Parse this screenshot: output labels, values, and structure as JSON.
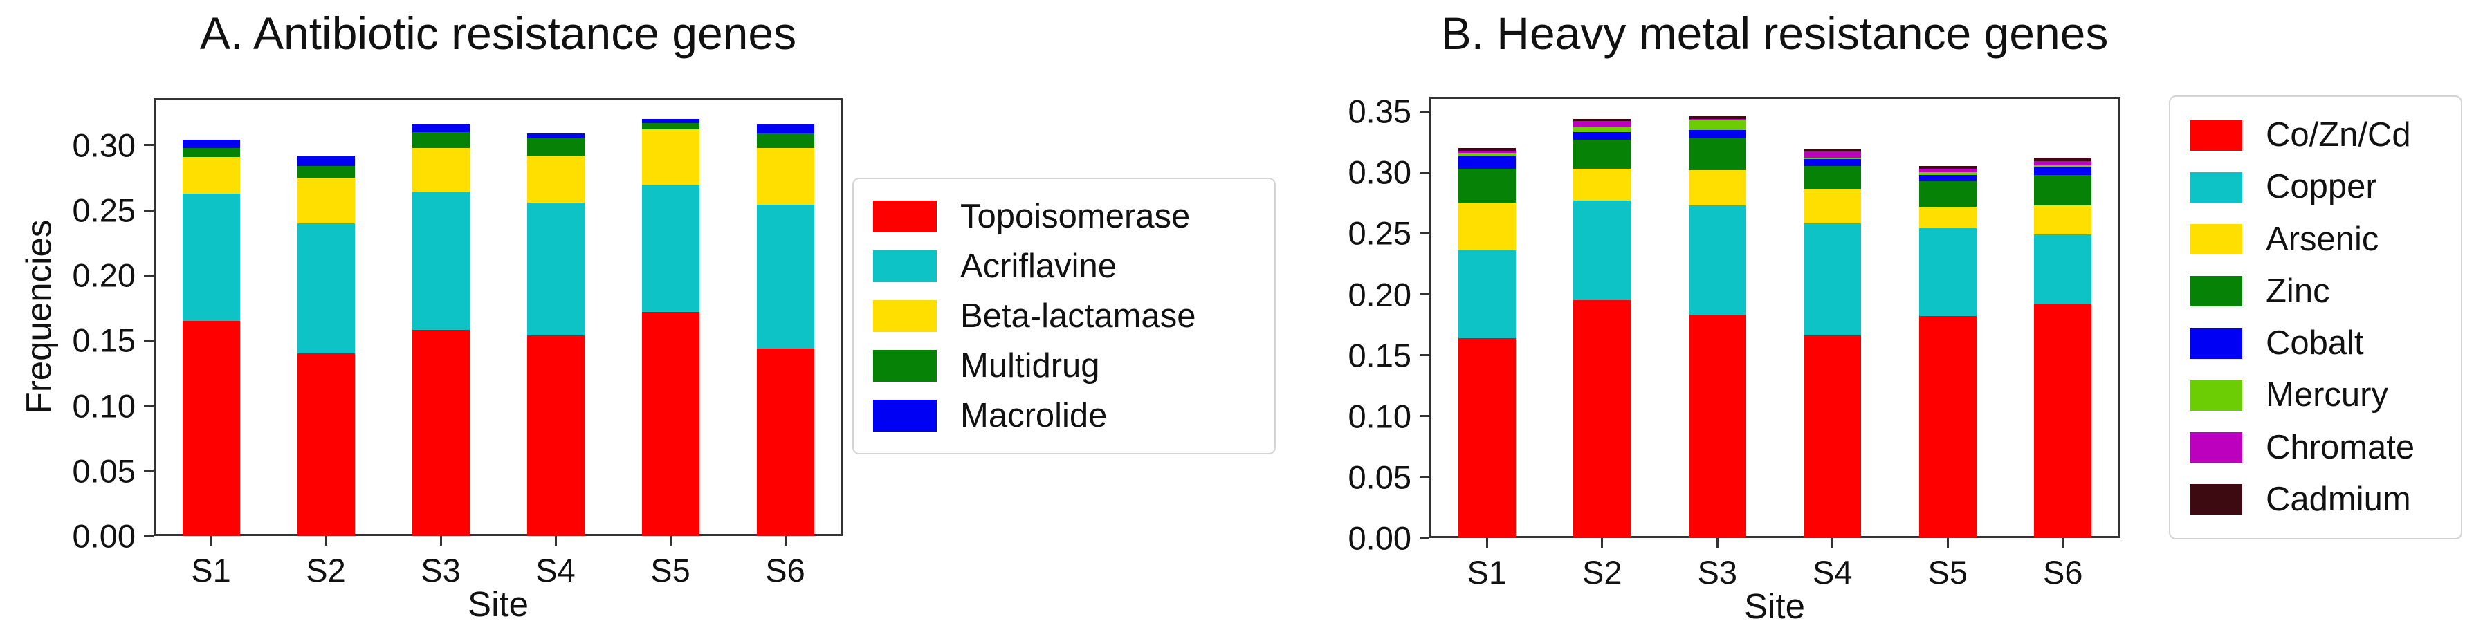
{
  "figure": {
    "background": "#ffffff",
    "text_color": "#111111",
    "axis_color": "#333333"
  },
  "chart_data": [
    {
      "type": "bar",
      "stacked": true,
      "title": "A. Antibiotic resistance genes",
      "xlabel": "Site",
      "ylabel": "Frequencies",
      "categories": [
        "S1",
        "S2",
        "S3",
        "S4",
        "S5",
        "S6"
      ],
      "ytick_labels": [
        "0.00",
        "0.05",
        "0.10",
        "0.15",
        "0.20",
        "0.25",
        "0.30"
      ],
      "ylim": [
        0,
        0.336
      ],
      "grid": false,
      "legend_position": "right-outside",
      "series": [
        {
          "name": "Topoisomerase",
          "color": "#fe0000",
          "values": [
            0.165,
            0.14,
            0.158,
            0.154,
            0.172,
            0.144
          ]
        },
        {
          "name": "Acriflavine",
          "color": "#0ec3c6",
          "values": [
            0.098,
            0.1,
            0.106,
            0.102,
            0.097,
            0.11
          ]
        },
        {
          "name": "Beta-lactamase",
          "color": "#ffdf00",
          "values": [
            0.028,
            0.035,
            0.034,
            0.036,
            0.043,
            0.044
          ]
        },
        {
          "name": "Multidrug",
          "color": "#068206",
          "values": [
            0.007,
            0.009,
            0.012,
            0.013,
            0.005,
            0.011
          ]
        },
        {
          "name": "Macrolide",
          "color": "#0000f5",
          "values": [
            0.006,
            0.008,
            0.006,
            0.004,
            0.003,
            0.007
          ]
        }
      ]
    },
    {
      "type": "bar",
      "stacked": true,
      "title": "B. Heavy metal resistance genes",
      "xlabel": "Site",
      "ylabel": "",
      "categories": [
        "S1",
        "S2",
        "S3",
        "S4",
        "S5",
        "S6"
      ],
      "ytick_labels": [
        "0.00",
        "0.05",
        "0.10",
        "0.15",
        "0.20",
        "0.25",
        "0.30",
        "0.35"
      ],
      "ylim": [
        0,
        0.362
      ],
      "grid": false,
      "legend_position": "right-outside",
      "series": [
        {
          "name": "Co/Zn/Cd",
          "color": "#fe0000",
          "values": [
            0.164,
            0.195,
            0.183,
            0.166,
            0.182,
            0.192
          ]
        },
        {
          "name": "Copper",
          "color": "#0ec3c6",
          "values": [
            0.072,
            0.082,
            0.09,
            0.092,
            0.072,
            0.057
          ]
        },
        {
          "name": "Arsenic",
          "color": "#ffdf00",
          "values": [
            0.039,
            0.026,
            0.029,
            0.028,
            0.018,
            0.024
          ]
        },
        {
          "name": "Zinc",
          "color": "#068206",
          "values": [
            0.028,
            0.024,
            0.026,
            0.019,
            0.021,
            0.025
          ]
        },
        {
          "name": "Cobalt",
          "color": "#0000f5",
          "values": [
            0.01,
            0.006,
            0.007,
            0.006,
            0.005,
            0.006
          ]
        },
        {
          "name": "Mercury",
          "color": "#6ccd05",
          "values": [
            0.003,
            0.004,
            0.008,
            0.001,
            0.002,
            0.002
          ]
        },
        {
          "name": "Chromate",
          "color": "#bd00bd",
          "values": [
            0.002,
            0.005,
            0.001,
            0.005,
            0.003,
            0.003
          ]
        },
        {
          "name": "Cadmium",
          "color": "#3c0a10",
          "values": [
            0.002,
            0.002,
            0.002,
            0.002,
            0.002,
            0.003
          ]
        }
      ]
    }
  ]
}
